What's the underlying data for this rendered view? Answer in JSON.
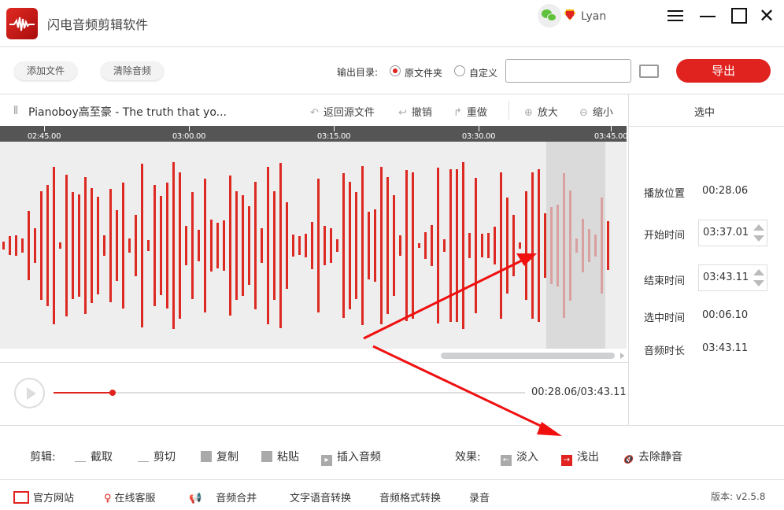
{
  "app": {
    "title": "闪电音频剪辑软件",
    "user": "Lyan",
    "icons": [
      "wechat-icon",
      "vip-badge-icon",
      "menu-icon",
      "minimize-icon",
      "maximize-icon",
      "close-icon"
    ]
  },
  "toolbar": {
    "add_file": "添加文件",
    "clear_audio": "清除音频",
    "output_dir_label": "输出目录:",
    "radio_original": "原文件夹",
    "radio_custom": "自定义",
    "custom_path": "",
    "export": "导出",
    "selected_option": "原文件夹"
  },
  "editor": {
    "filename": "Pianoboy高至豪 - The truth that yo...",
    "revert": "返回源文件",
    "undo": "撤销",
    "redo": "重做",
    "zoom_in": "放大",
    "zoom_out": "缩小"
  },
  "timeline": {
    "ticks": [
      "02:45.00",
      "03:00.00",
      "03:15.00",
      "03:30.00",
      "03:45.00"
    ]
  },
  "player": {
    "time": "00:28.06/03:43.11",
    "progress": 0.125
  },
  "panel": {
    "header": "选中",
    "play_pos_label": "播放位置",
    "play_pos": "00:28.06",
    "start_label": "开始时间",
    "start": "03:37.01",
    "end_label": "结束时间",
    "end": "03:43.11",
    "sel_label": "选中时间",
    "sel": "00:06.10",
    "dur_label": "音频时长",
    "dur": "03:43.11"
  },
  "edit": {
    "label": "剪辑:",
    "crop": "截取",
    "cut": "剪切",
    "copy": "复制",
    "paste": "粘贴",
    "insert": "插入音频",
    "effects_label": "效果:",
    "fade_in": "淡入",
    "fade_out": "浅出",
    "remove_silence": "去除静音"
  },
  "footer": {
    "website": "官方网站",
    "support": "在线客服",
    "merge": "音频合并",
    "tts": "文字语音转换",
    "convert": "音频格式转换",
    "record": "录音",
    "version": "版本: v2.5.8"
  },
  "colors": {
    "accent": "#e0231f",
    "waveform": "#dc2a22",
    "waveform_selected": "#d9a0a0",
    "timeline": "#555555"
  }
}
